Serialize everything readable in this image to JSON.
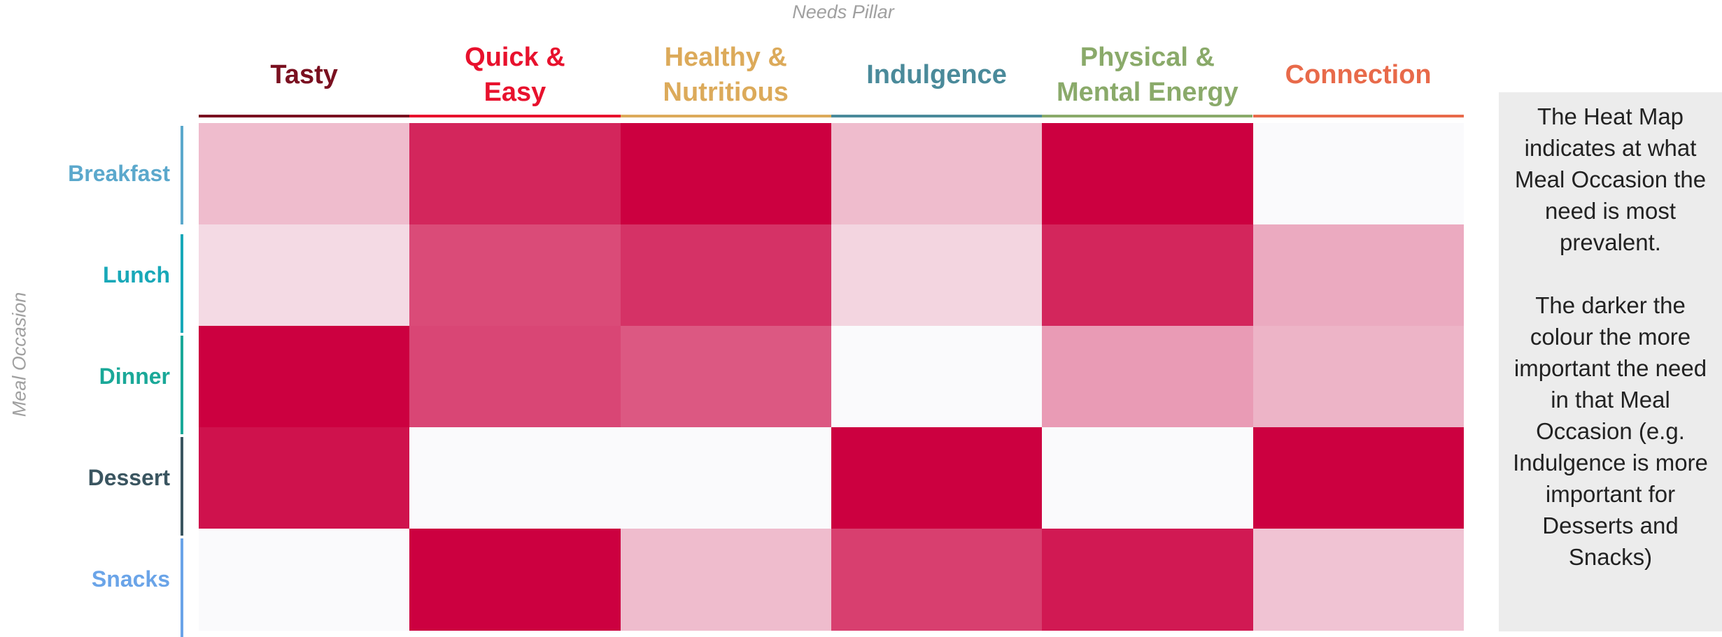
{
  "chart_data": {
    "type": "heatmap",
    "x_label": "Needs Pillar",
    "y_label": "Meal Occasion",
    "columns": [
      "Tasty",
      "Quick &\nEasy",
      "Healthy &\nNutritious",
      "Indulgence",
      "Physical &\nMental Energy",
      "Connection"
    ],
    "column_colors": [
      "#7a1020",
      "#e8112d",
      "#dcaa5a",
      "#4a8a9a",
      "#8aaa6a",
      "#e86a4a"
    ],
    "rows": [
      "Breakfast",
      "Lunch",
      "Dinner",
      "Dessert",
      "Snacks"
    ],
    "row_colors": [
      "#5ba8cc",
      "#18a8b8",
      "#1aa898",
      "#3a5560",
      "#6aa4e8"
    ],
    "values": [
      [
        25,
        85,
        100,
        25,
        100,
        0
      ],
      [
        13,
        70,
        80,
        15,
        85,
        32
      ],
      [
        100,
        72,
        65,
        0,
        38,
        28
      ],
      [
        93,
        0,
        0,
        100,
        0,
        100
      ],
      [
        0,
        100,
        25,
        75,
        90,
        22
      ]
    ],
    "value_range": [
      0,
      100
    ],
    "color_low": "#fafafc",
    "color_high": "#cc0040",
    "note": [
      "The Heat Map indicates at what Meal Occasion the need is most prevalent.",
      "The darker the colour the more important the need in that Meal Occasion (e.g. Indulgence is more important for Desserts and Snacks)"
    ]
  }
}
